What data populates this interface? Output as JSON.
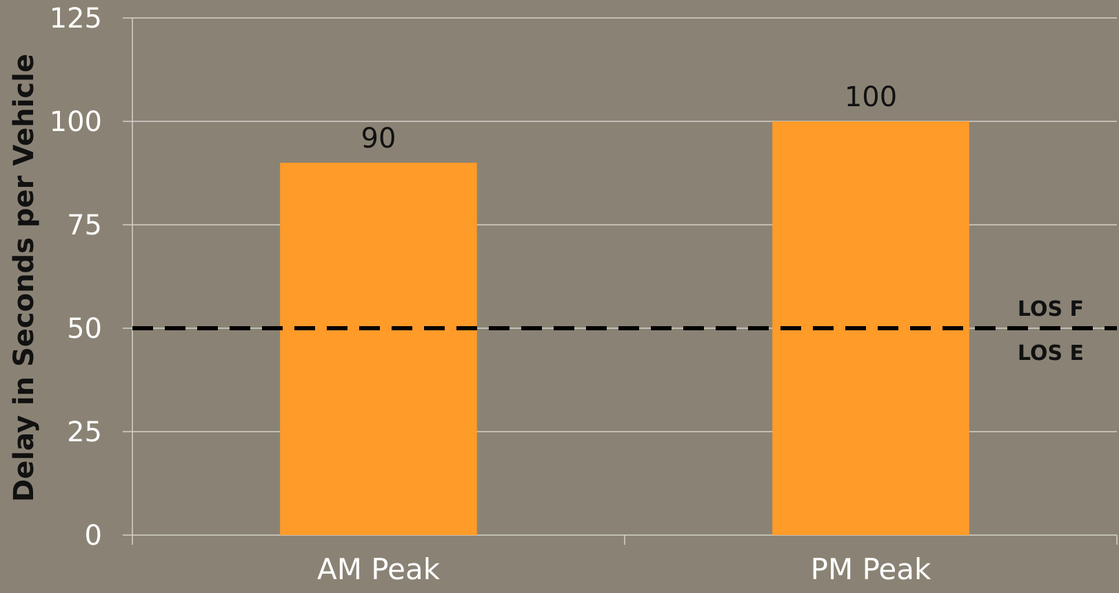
{
  "colors": {
    "background": "#8a8375",
    "bar": "#fe9b29",
    "grid": "#d6d2ca",
    "reference_line": "#000000"
  },
  "chart_data": {
    "type": "bar",
    "categories": [
      "AM Peak",
      "PM Peak"
    ],
    "values": [
      90,
      100
    ],
    "data_labels": [
      "90",
      "100"
    ],
    "title": "",
    "xlabel": "",
    "ylabel": "Delay in Seconds per Vehicle",
    "ylim": [
      0,
      125
    ],
    "yticks": [
      0,
      25,
      50,
      75,
      100,
      125
    ],
    "grid": true,
    "reference_line": {
      "value": 50,
      "style": "dashed",
      "label_above": "LOS F",
      "label_below": "LOS E"
    }
  }
}
